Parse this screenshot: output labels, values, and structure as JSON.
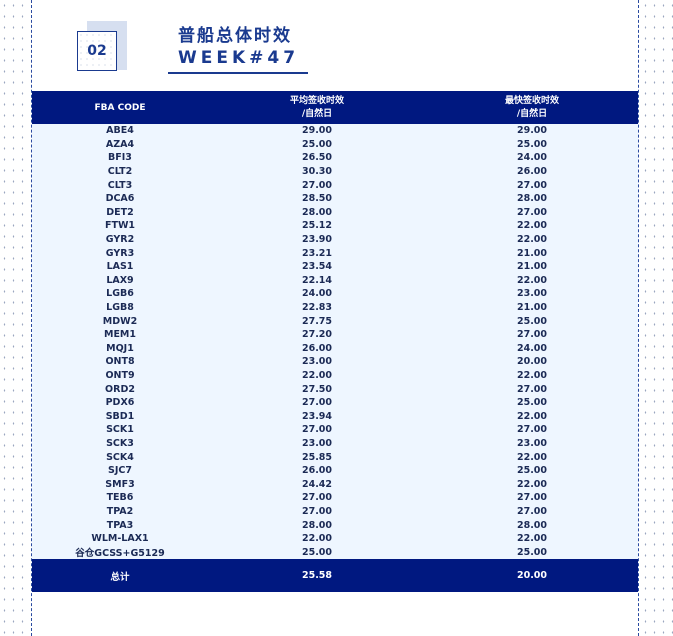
{
  "header": {
    "badge": "02",
    "title": "普船总体时效",
    "subtitle": "WEEK#47"
  },
  "colors": {
    "accent": "#001880",
    "text": "#1a3a8f",
    "row_bg": "#eef6ff"
  },
  "table": {
    "columns": [
      {
        "line1": "FBA CODE",
        "line2": ""
      },
      {
        "line1": "平均签收时效",
        "line2": "/自然日"
      },
      {
        "line1": "最快签收时效",
        "line2": "/自然日"
      }
    ],
    "rows": [
      [
        "ABE4",
        "29.00",
        "29.00"
      ],
      [
        "AZA4",
        "25.00",
        "25.00"
      ],
      [
        "BFI3",
        "26.50",
        "24.00"
      ],
      [
        "CLT2",
        "30.30",
        "26.00"
      ],
      [
        "CLT3",
        "27.00",
        "27.00"
      ],
      [
        "DCA6",
        "28.50",
        "28.00"
      ],
      [
        "DET2",
        "28.00",
        "27.00"
      ],
      [
        "FTW1",
        "25.12",
        "22.00"
      ],
      [
        "GYR2",
        "23.90",
        "22.00"
      ],
      [
        "GYR3",
        "23.21",
        "21.00"
      ],
      [
        "LAS1",
        "23.54",
        "21.00"
      ],
      [
        "LAX9",
        "22.14",
        "22.00"
      ],
      [
        "LGB6",
        "24.00",
        "23.00"
      ],
      [
        "LGB8",
        "22.83",
        "21.00"
      ],
      [
        "MDW2",
        "27.75",
        "25.00"
      ],
      [
        "MEM1",
        "27.20",
        "27.00"
      ],
      [
        "MQJ1",
        "26.00",
        "24.00"
      ],
      [
        "ONT8",
        "23.00",
        "20.00"
      ],
      [
        "ONT9",
        "22.00",
        "22.00"
      ],
      [
        "ORD2",
        "27.50",
        "27.00"
      ],
      [
        "PDX6",
        "27.00",
        "25.00"
      ],
      [
        "SBD1",
        "23.94",
        "22.00"
      ],
      [
        "SCK1",
        "27.00",
        "27.00"
      ],
      [
        "SCK3",
        "23.00",
        "23.00"
      ],
      [
        "SCK4",
        "25.85",
        "22.00"
      ],
      [
        "SJC7",
        "26.00",
        "25.00"
      ],
      [
        "SMF3",
        "24.42",
        "22.00"
      ],
      [
        "TEB6",
        "27.00",
        "27.00"
      ],
      [
        "TPA2",
        "27.00",
        "27.00"
      ],
      [
        "TPA3",
        "28.00",
        "28.00"
      ],
      [
        "WLM-LAX1",
        "22.00",
        "22.00"
      ],
      [
        "谷仓GCSS+G5129",
        "25.00",
        "25.00"
      ]
    ],
    "total": [
      "总计",
      "25.58",
      "20.00"
    ]
  }
}
